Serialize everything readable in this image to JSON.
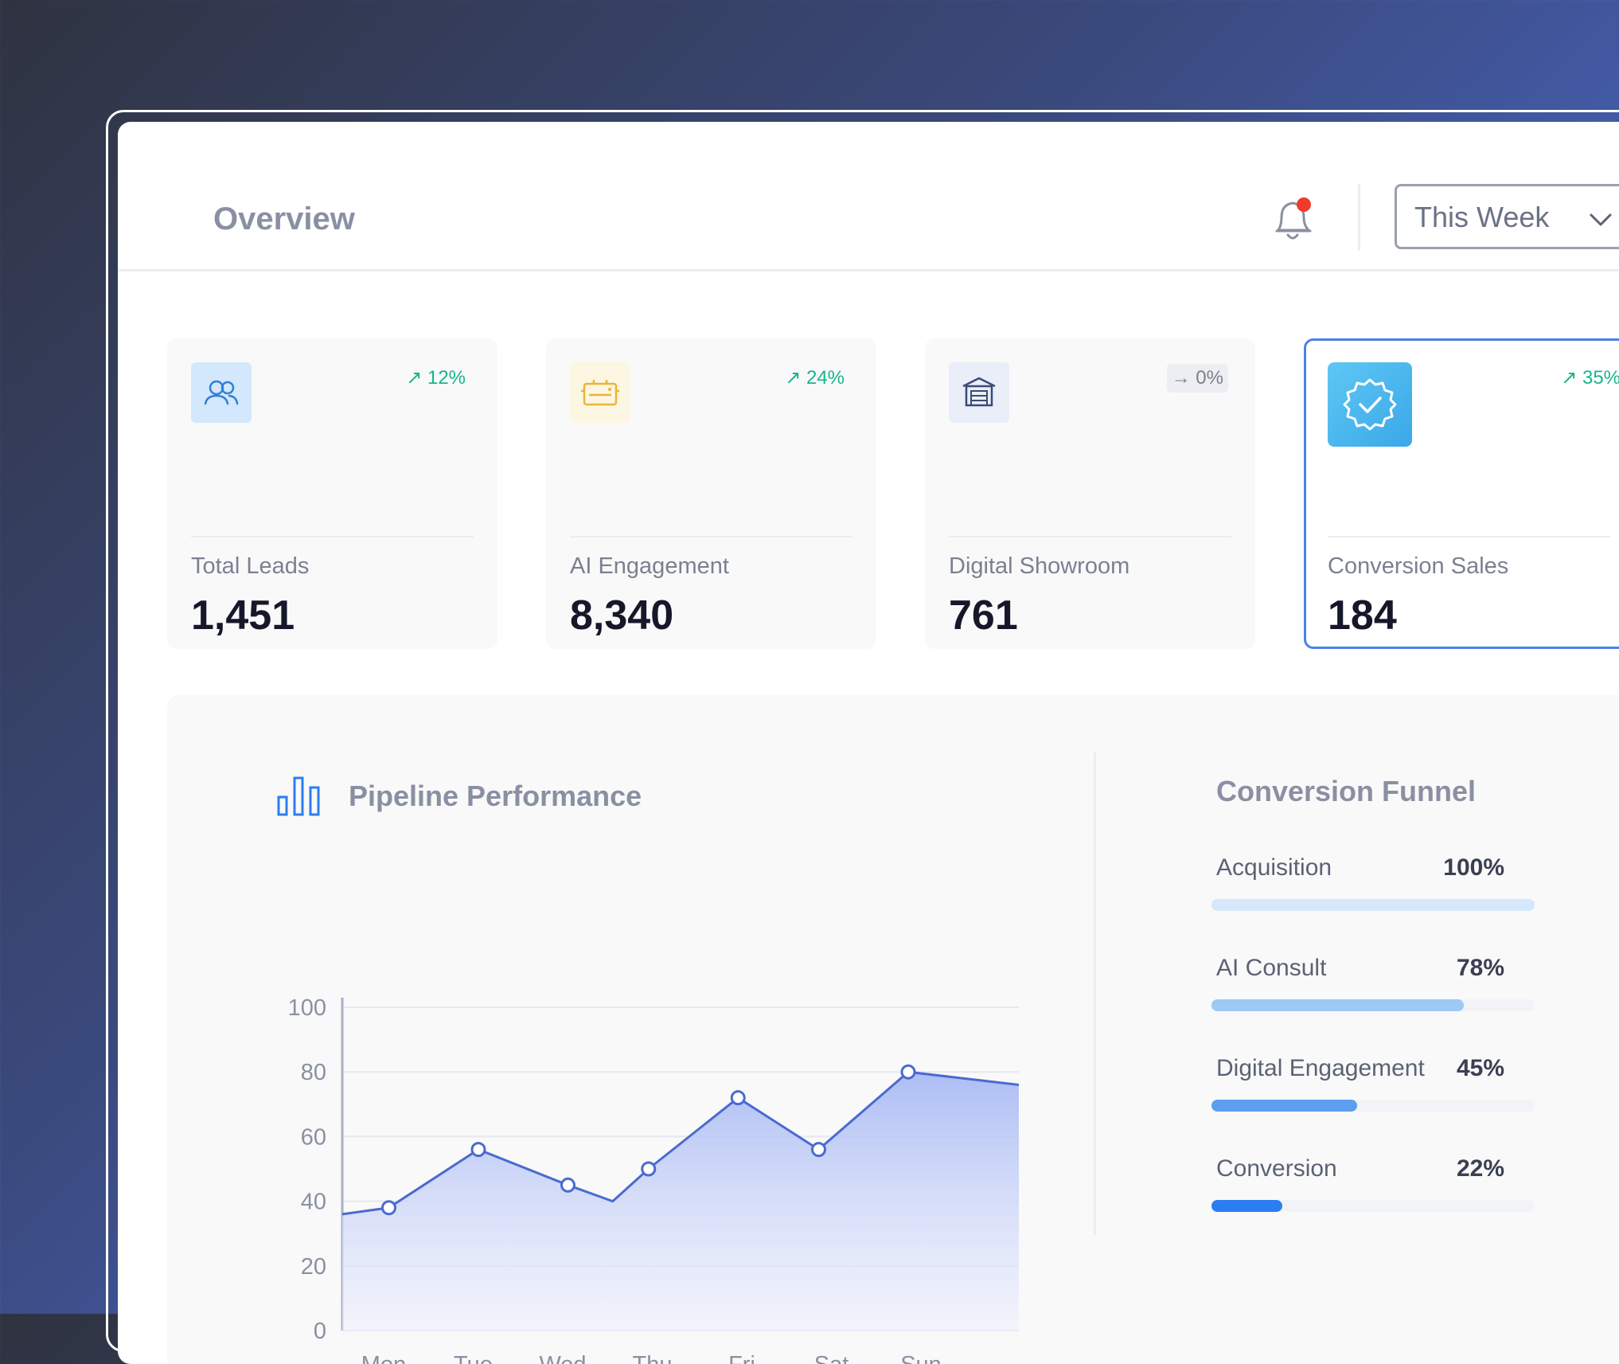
{
  "header": {
    "title": "Overview",
    "period_select": {
      "value": "This Week"
    }
  },
  "cards": [
    {
      "label": "Total Leads",
      "value": "1,451",
      "trend": "↗ 12%",
      "trend_type": "up",
      "icon": "users-icon",
      "accent": "#2f7fd8"
    },
    {
      "label": "AI Engagement",
      "value": "8,340",
      "trend": "↗ 24%",
      "trend_type": "up",
      "icon": "robot-icon",
      "accent": "#e8b53a"
    },
    {
      "label": "Digital Showroom",
      "value": "761",
      "trend": "→ 0%",
      "trend_type": "flat",
      "icon": "showroom-icon",
      "accent": "#3a4a78"
    },
    {
      "label": "Conversion Sales",
      "value": "184",
      "trend": "↗ 35%",
      "trend_type": "up",
      "icon": "verified-badge-icon",
      "accent": "#4fb9ee"
    }
  ],
  "pipeline": {
    "title": "Pipeline Performance",
    "icon": "bar-chart-icon"
  },
  "chart_data": {
    "type": "area",
    "title": "Pipeline Performance",
    "categories": [
      "Mon",
      "Tue",
      "Wed",
      "Thu",
      "Fri",
      "Sat",
      "Sun"
    ],
    "points": [
      {
        "x": 0.2,
        "y": 38,
        "marker": true
      },
      {
        "x": 1.2,
        "y": 56,
        "marker": true
      },
      {
        "x": 2.2,
        "y": 45,
        "marker": true
      },
      {
        "x": 2.7,
        "y": 40,
        "marker": false
      },
      {
        "x": 3.1,
        "y": 50,
        "marker": true
      },
      {
        "x": 4.1,
        "y": 72,
        "marker": true
      },
      {
        "x": 5.0,
        "y": 56,
        "marker": true
      },
      {
        "x": 6.0,
        "y": 80,
        "marker": true
      }
    ],
    "start_y": 36,
    "end_y": 76,
    "yticks": [
      0,
      20,
      40,
      60,
      80,
      100
    ],
    "ylim": [
      0,
      100
    ],
    "grid": true,
    "line_color": "#4a6ad0",
    "fill_color": "#a9baf4"
  },
  "funnel": {
    "title": "Conversion Funnel",
    "items": [
      {
        "label": "Acquisition",
        "pct_label": "100%",
        "pct": 100,
        "color": "#d6e8fb"
      },
      {
        "label": "AI Consult",
        "pct_label": "78%",
        "pct": 78,
        "color": "#9cc9f5"
      },
      {
        "label": "Digital Engagement",
        "pct_label": "45%",
        "pct": 45,
        "color": "#5c9ef0"
      },
      {
        "label": "Conversion",
        "pct_label": "22%",
        "pct": 22,
        "color": "#2a7ef2"
      }
    ]
  },
  "notification": {
    "icon": "bell-icon",
    "has_unread": true,
    "dot_color": "#f03a2a"
  }
}
